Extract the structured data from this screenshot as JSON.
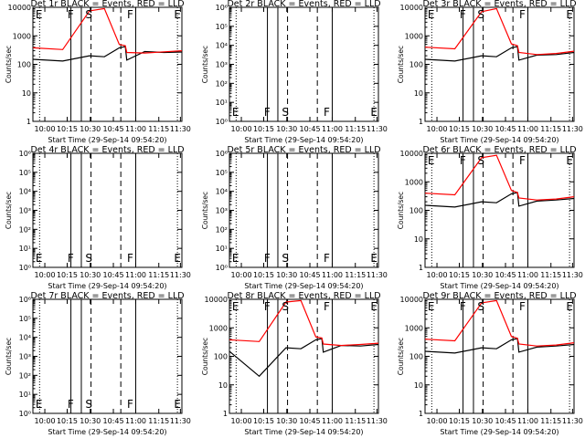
{
  "chart_data": [
    {
      "title": "Det 1r BLACK = Events, RED = LLD",
      "ylabel": "Counts/sec",
      "xlabel": "Start Time (29-Sep-14 09:54:20)",
      "xticks": [
        "10:00",
        "10:15",
        "10:30",
        "10:45",
        "11:00",
        "11:15",
        "11:30"
      ],
      "yticks": [
        "1",
        "10",
        "100",
        "1000",
        "10000"
      ],
      "markers": [
        "E",
        "F",
        "S",
        "F",
        "E"
      ],
      "black": [
        150,
        130,
        200,
        185,
        380,
        420,
        140,
        280,
        260,
        270
      ],
      "red": [
        380,
        330,
        7500,
        9000,
        500,
        450,
        260,
        250,
        275,
        300
      ],
      "flare": true
    },
    {
      "title": "Det 2r BLACK = Events, RED = LLD",
      "ylabel": "Counts/sec",
      "xlabel": "Start Time (29-Sep-14 09:54:20)",
      "xticks": [
        "10:00",
        "10:15",
        "10:30",
        "10:45",
        "11:00",
        "11:15",
        "11:30"
      ],
      "yticks": [
        "10⁰",
        "10¹",
        "10²",
        "10³",
        "10⁴",
        "10⁵",
        "10⁶"
      ],
      "markers": [
        "E",
        "F",
        "S",
        "F",
        "E"
      ],
      "black": [],
      "red": [],
      "flare": false
    },
    {
      "title": "Det 3r BLACK = Events, RED = LLD",
      "ylabel": "Counts/sec",
      "xlabel": "Start Time (29-Sep-14 09:54:20)",
      "xticks": [
        "10:00",
        "10:15",
        "10:30",
        "10:45",
        "11:00",
        "11:15",
        "11:30"
      ],
      "yticks": [
        "1",
        "10",
        "100",
        "1000",
        "10000"
      ],
      "markers": [
        "E",
        "F",
        "S",
        "F",
        "E"
      ],
      "black": [
        150,
        130,
        200,
        185,
        380,
        420,
        140,
        210,
        220,
        260
      ],
      "red": [
        400,
        350,
        7000,
        9000,
        520,
        450,
        260,
        220,
        240,
        290
      ],
      "flare": true
    },
    {
      "title": "Det 4r BLACK = Events, RED = LLD",
      "ylabel": "Counts/sec",
      "xlabel": "Start Time (29-Sep-14 09:54:20)",
      "xticks": [
        "10:00",
        "10:15",
        "10:30",
        "10:45",
        "11:00",
        "11:15",
        "11:30"
      ],
      "yticks": [
        "10⁰",
        "10¹",
        "10²",
        "10³",
        "10⁴",
        "10⁵",
        "10⁶"
      ],
      "markers": [
        "E",
        "F",
        "S",
        "F",
        "E"
      ],
      "black": [],
      "red": [],
      "flare": false
    },
    {
      "title": "Det 5r BLACK = Events, RED = LLD",
      "ylabel": "Counts/sec",
      "xlabel": "Start Time (29-Sep-14 09:54:20)",
      "xticks": [
        "10:00",
        "10:15",
        "10:30",
        "10:45",
        "11:00",
        "11:15",
        "11:30"
      ],
      "yticks": [
        "10⁰",
        "10¹",
        "10²",
        "10³",
        "10⁴",
        "10⁵",
        "10⁶"
      ],
      "markers": [
        "E",
        "F",
        "S",
        "F",
        "E"
      ],
      "black": [],
      "red": [],
      "flare": false
    },
    {
      "title": "Det 6r BLACK = Events, RED = LLD",
      "ylabel": "Counts/sec",
      "xlabel": "Start Time (29-Sep-14 09:54:20)",
      "xticks": [
        "10:00",
        "10:15",
        "10:30",
        "10:45",
        "11:00",
        "11:15",
        "11:30"
      ],
      "yticks": [
        "1",
        "10",
        "100",
        "1000",
        "10000"
      ],
      "markers": [
        "E",
        "F",
        "S",
        "F",
        "E"
      ],
      "black": [
        150,
        130,
        200,
        185,
        380,
        420,
        140,
        210,
        230,
        260
      ],
      "red": [
        400,
        350,
        7000,
        8500,
        500,
        420,
        270,
        230,
        250,
        300
      ],
      "flare": true
    },
    {
      "title": "Det 7r BLACK = Events, RED = LLD",
      "ylabel": "Counts/sec",
      "xlabel": "Start Time (29-Sep-14 09:54:20)",
      "xticks": [
        "10:00",
        "10:15",
        "10:30",
        "10:45",
        "11:00",
        "11:15",
        "11:30"
      ],
      "yticks": [
        "10⁰",
        "10¹",
        "10²",
        "10³",
        "10⁴",
        "10⁵",
        "10⁶"
      ],
      "markers": [
        "E",
        "F",
        "S",
        "F",
        "E"
      ],
      "black": [],
      "red": [],
      "flare": false
    },
    {
      "title": "Det 8r BLACK = Events, RED = LLD",
      "ylabel": "Counts/sec",
      "xlabel": "Start Time (29-Sep-14 09:54:20)",
      "xticks": [
        "10:00",
        "10:15",
        "10:30",
        "10:45",
        "11:00",
        "11:15",
        "11:30"
      ],
      "yticks": [
        "1",
        "10",
        "100",
        "1000",
        "10000"
      ],
      "markers": [
        "E",
        "F",
        "S",
        "F",
        "E"
      ],
      "black": [
        150,
        20,
        200,
        185,
        380,
        420,
        140,
        240,
        230,
        260
      ],
      "red": [
        380,
        330,
        8000,
        9000,
        480,
        440,
        270,
        240,
        260,
        290
      ],
      "flare": true
    },
    {
      "title": "Det 9r BLACK = Events, RED = LLD",
      "ylabel": "Counts/sec",
      "xlabel": "Start Time (29-Sep-14 09:54:20)",
      "xticks": [
        "10:00",
        "10:15",
        "10:30",
        "10:45",
        "11:00",
        "11:15",
        "11:30"
      ],
      "yticks": [
        "1",
        "10",
        "100",
        "1000",
        "10000"
      ],
      "markers": [
        "E",
        "F",
        "S",
        "F",
        "E"
      ],
      "black": [
        150,
        130,
        200,
        185,
        380,
        420,
        140,
        210,
        230,
        260
      ],
      "red": [
        400,
        350,
        7500,
        9000,
        500,
        430,
        270,
        230,
        250,
        300
      ],
      "flare": true
    }
  ],
  "colors": {
    "events": "#000000",
    "lld": "#ff0000"
  }
}
